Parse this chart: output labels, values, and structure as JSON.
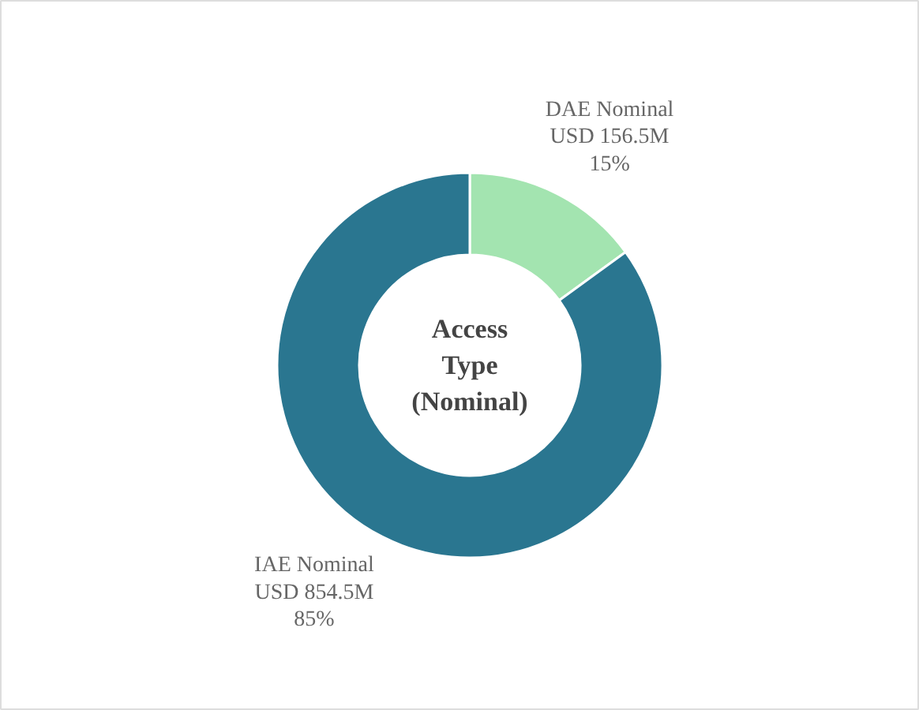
{
  "chart_data": {
    "type": "donut",
    "title": "Access Type (Nominal)",
    "categories": [
      "DAE Nominal",
      "IAE Nominal"
    ],
    "values": [
      15,
      85
    ],
    "colors": [
      "#a3e4b0",
      "#2a7690"
    ],
    "value_labels": [
      "15%",
      "85%"
    ],
    "annotations": [
      "USD 156.5M",
      "USD 854.5M"
    ]
  }
}
